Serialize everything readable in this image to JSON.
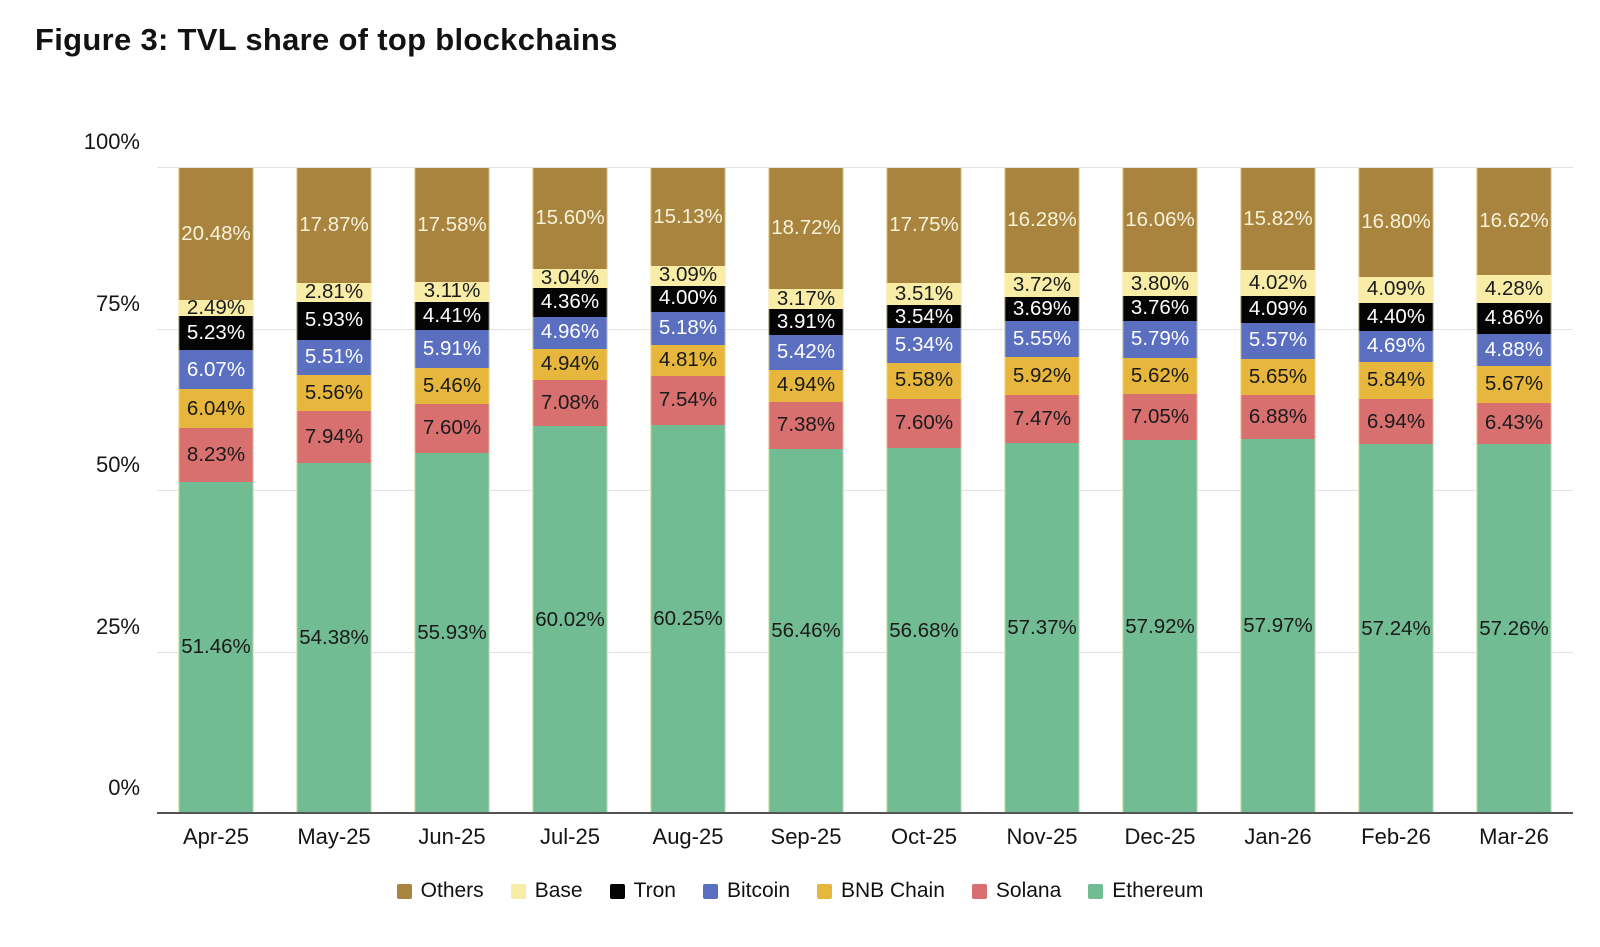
{
  "title": "Figure 3: TVL share of top blockchains",
  "chart_data": {
    "type": "bar",
    "stacked": true,
    "stack_total": 100,
    "title": "Figure 3: TVL share of top blockchains",
    "xlabel": "",
    "ylabel": "",
    "grid": true,
    "value_suffix": "%",
    "categories": [
      "Apr-25",
      "May-25",
      "Jun-25",
      "Jul-25",
      "Aug-25",
      "Sep-25",
      "Oct-25",
      "Nov-25",
      "Dec-25",
      "Jan-26",
      "Feb-26",
      "Mar-26"
    ],
    "series": [
      {
        "name": "Ethereum",
        "color": "#71bc92",
        "label_color": "#1a1a1a",
        "values": [
          51.46,
          54.38,
          55.93,
          60.02,
          60.25,
          56.46,
          56.68,
          57.37,
          57.92,
          57.97,
          57.24,
          57.26
        ]
      },
      {
        "name": "Solana",
        "color": "#d97070",
        "label_color": "#1a1a1a",
        "values": [
          8.23,
          7.94,
          7.6,
          7.08,
          7.54,
          7.38,
          7.6,
          7.47,
          7.05,
          6.88,
          6.94,
          6.43
        ]
      },
      {
        "name": "BNB Chain",
        "color": "#e6b63d",
        "label_color": "#1a1a1a",
        "values": [
          6.04,
          5.56,
          5.46,
          4.94,
          4.81,
          4.94,
          5.58,
          5.92,
          5.62,
          5.65,
          5.84,
          5.67
        ]
      },
      {
        "name": "Bitcoin",
        "color": "#5a6fc0",
        "label_color": "#ffffff",
        "values": [
          6.07,
          5.51,
          5.91,
          4.96,
          5.18,
          5.42,
          5.34,
          5.55,
          5.79,
          5.57,
          4.69,
          4.88
        ]
      },
      {
        "name": "Tron",
        "color": "#040404",
        "label_color": "#ffffff",
        "values": [
          5.23,
          5.93,
          4.41,
          4.36,
          4.0,
          3.91,
          3.54,
          3.69,
          3.76,
          4.09,
          4.4,
          4.86
        ]
      },
      {
        "name": "Base",
        "color": "#f8eca6",
        "label_color": "#1a1a1a",
        "values": [
          2.49,
          2.81,
          3.11,
          3.04,
          3.09,
          3.17,
          3.51,
          3.72,
          3.8,
          4.02,
          4.09,
          4.28
        ]
      },
      {
        "name": "Others",
        "color": "#a8843f",
        "label_color": "#f8f2d8",
        "values": [
          20.48,
          17.87,
          17.58,
          15.6,
          15.13,
          18.72,
          17.75,
          16.28,
          16.06,
          15.82,
          16.8,
          16.62
        ]
      }
    ],
    "y_axis": {
      "min": 0,
      "max": 100,
      "ticks": [
        "0%",
        "25%",
        "50%",
        "75%",
        "100%"
      ]
    },
    "legend": {
      "position": "bottom",
      "items": [
        "Others",
        "Base",
        "Tron",
        "Bitcoin",
        "BNB Chain",
        "Solana",
        "Ethereum"
      ]
    }
  }
}
